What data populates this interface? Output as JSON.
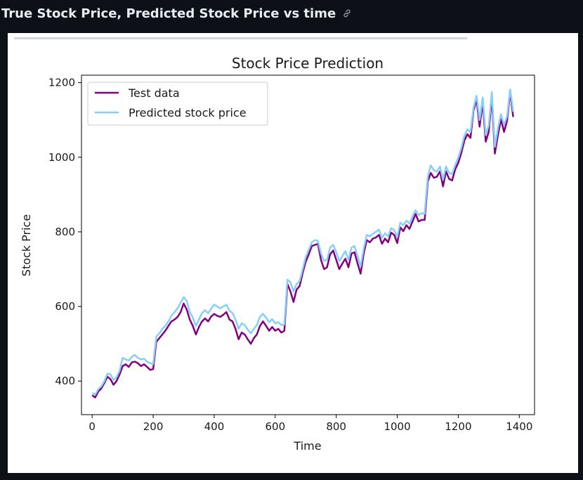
{
  "header": {
    "title": "True Stock Price, Predicted Stock Price vs time",
    "icon": "link-icon"
  },
  "chart_data": {
    "type": "line",
    "title": "Stock Price Prediction",
    "xlabel": "Time",
    "ylabel": "Stock Price",
    "xlim": [
      -35,
      1450
    ],
    "ylim": [
      310,
      1220
    ],
    "xticks": [
      0,
      200,
      400,
      600,
      800,
      1000,
      1200,
      1400
    ],
    "yticks": [
      400,
      600,
      800,
      1000,
      1200
    ],
    "grid": false,
    "legend": "top-left",
    "series": [
      {
        "name": "Test data",
        "color": "#800080",
        "x": [
          0,
          10,
          20,
          30,
          40,
          50,
          60,
          70,
          80,
          90,
          100,
          110,
          120,
          130,
          140,
          150,
          160,
          170,
          180,
          190,
          200,
          210,
          220,
          230,
          240,
          250,
          260,
          270,
          280,
          290,
          300,
          310,
          320,
          330,
          340,
          350,
          360,
          370,
          380,
          390,
          400,
          410,
          420,
          430,
          440,
          450,
          460,
          470,
          480,
          490,
          500,
          510,
          520,
          530,
          540,
          550,
          560,
          570,
          580,
          590,
          600,
          610,
          620,
          630,
          640,
          650,
          660,
          670,
          680,
          690,
          700,
          710,
          720,
          730,
          740,
          750,
          760,
          770,
          780,
          790,
          800,
          810,
          820,
          830,
          840,
          850,
          860,
          870,
          880,
          890,
          900,
          910,
          920,
          930,
          940,
          950,
          960,
          970,
          980,
          990,
          1000,
          1010,
          1020,
          1030,
          1040,
          1050,
          1060,
          1070,
          1080,
          1090,
          1100,
          1110,
          1120,
          1130,
          1140,
          1150,
          1160,
          1170,
          1180,
          1190,
          1200,
          1210,
          1220,
          1230,
          1240,
          1250,
          1260,
          1270,
          1280,
          1290,
          1300,
          1310,
          1320,
          1330,
          1340,
          1350,
          1360,
          1370,
          1380
        ],
        "y": [
          362,
          356,
          372,
          380,
          395,
          412,
          405,
          390,
          400,
          418,
          440,
          445,
          438,
          450,
          452,
          448,
          440,
          445,
          438,
          430,
          432,
          505,
          515,
          525,
          535,
          548,
          560,
          565,
          572,
          585,
          608,
          592,
          565,
          548,
          525,
          545,
          560,
          568,
          560,
          573,
          580,
          575,
          572,
          578,
          585,
          565,
          560,
          540,
          512,
          530,
          525,
          512,
          500,
          515,
          525,
          548,
          560,
          548,
          535,
          545,
          535,
          540,
          530,
          535,
          660,
          640,
          612,
          645,
          655,
          690,
          720,
          740,
          762,
          765,
          768,
          725,
          700,
          705,
          740,
          750,
          725,
          700,
          715,
          728,
          705,
          742,
          745,
          715,
          688,
          742,
          778,
          772,
          782,
          785,
          792,
          768,
          782,
          772,
          798,
          792,
          770,
          812,
          802,
          818,
          808,
          828,
          848,
          828,
          832,
          832,
          935,
          958,
          945,
          948,
          962,
          922,
          962,
          942,
          938,
          968,
          985,
          1012,
          1045,
          1062,
          1052,
          1125,
          1155,
          1082,
          1148,
          1042,
          1068,
          1162,
          1010,
          1060,
          1102,
          1068,
          1098,
          1175,
          1108
        ]
      },
      {
        "name": "Predicted stock price",
        "color": "#87cefa",
        "x": [
          0,
          10,
          20,
          30,
          40,
          50,
          60,
          70,
          80,
          90,
          100,
          110,
          120,
          130,
          140,
          150,
          160,
          170,
          180,
          190,
          200,
          210,
          220,
          230,
          240,
          250,
          260,
          270,
          280,
          290,
          300,
          310,
          320,
          330,
          340,
          350,
          360,
          370,
          380,
          390,
          400,
          410,
          420,
          430,
          440,
          450,
          460,
          470,
          480,
          490,
          500,
          510,
          520,
          530,
          540,
          550,
          560,
          570,
          580,
          590,
          600,
          610,
          620,
          630,
          640,
          650,
          660,
          670,
          680,
          690,
          700,
          710,
          720,
          730,
          740,
          750,
          760,
          770,
          780,
          790,
          800,
          810,
          820,
          830,
          840,
          850,
          860,
          870,
          880,
          890,
          900,
          910,
          920,
          930,
          940,
          950,
          960,
          970,
          980,
          990,
          1000,
          1010,
          1020,
          1030,
          1040,
          1050,
          1060,
          1070,
          1080,
          1090,
          1100,
          1110,
          1120,
          1130,
          1140,
          1150,
          1160,
          1170,
          1180,
          1190,
          1200,
          1210,
          1220,
          1230,
          1240,
          1250,
          1260,
          1270,
          1280,
          1290,
          1300,
          1310,
          1320,
          1330,
          1340,
          1350,
          1360,
          1370,
          1380
        ],
        "y": [
          368,
          364,
          378,
          386,
          400,
          420,
          418,
          403,
          410,
          428,
          462,
          458,
          455,
          465,
          470,
          462,
          458,
          460,
          452,
          448,
          446,
          518,
          528,
          540,
          548,
          560,
          575,
          585,
          595,
          610,
          625,
          615,
          585,
          570,
          548,
          565,
          582,
          590,
          582,
          594,
          605,
          600,
          595,
          600,
          605,
          588,
          583,
          565,
          540,
          555,
          550,
          538,
          528,
          540,
          550,
          572,
          580,
          570,
          558,
          566,
          555,
          558,
          550,
          552,
          672,
          665,
          640,
          660,
          668,
          700,
          732,
          752,
          772,
          778,
          776,
          742,
          722,
          726,
          758,
          765,
          745,
          722,
          735,
          748,
          725,
          758,
          762,
          735,
          708,
          755,
          792,
          788,
          795,
          800,
          806,
          784,
          796,
          788,
          810,
          805,
          786,
          825,
          818,
          830,
          822,
          842,
          858,
          845,
          850,
          848,
          948,
          978,
          965,
          962,
          975,
          940,
          975,
          958,
          955,
          980,
          998,
          1025,
          1058,
          1075,
          1068,
          1132,
          1165,
          1100,
          1160,
          1060,
          1085,
          1175,
          1028,
          1078,
          1115,
          1086,
          1110,
          1182,
          1122
        ]
      }
    ]
  }
}
